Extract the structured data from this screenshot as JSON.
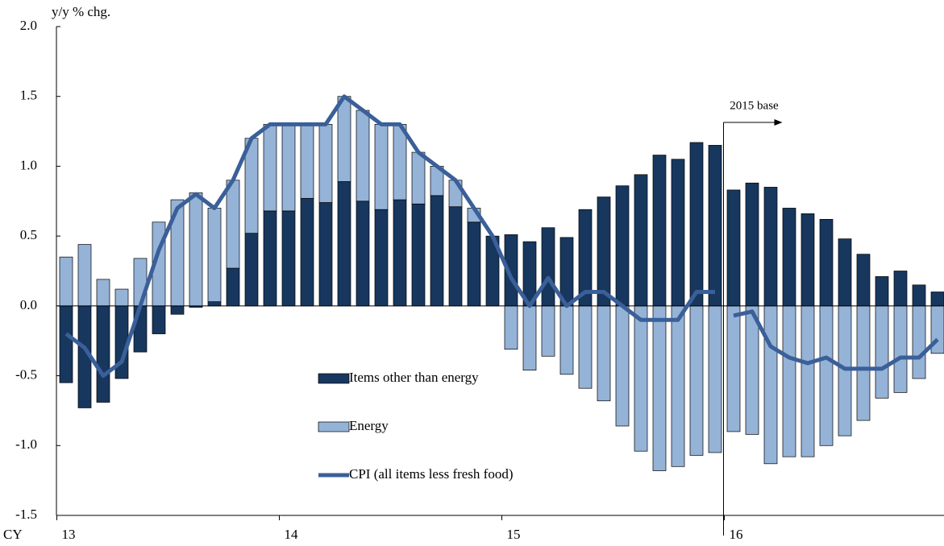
{
  "chart_data": {
    "type": "bar",
    "y_axis_label": "y/y % chg.",
    "x_axis_label": "CY",
    "categories": [
      "13",
      null,
      null,
      null,
      null,
      null,
      null,
      null,
      null,
      null,
      null,
      null,
      "14",
      null,
      null,
      null,
      null,
      null,
      null,
      null,
      null,
      null,
      null,
      null,
      "15",
      null,
      null,
      null,
      null,
      null,
      null,
      null,
      null,
      null,
      null,
      null,
      "16",
      null,
      null,
      null,
      null,
      null,
      null,
      null,
      null,
      null,
      null,
      null
    ],
    "series": [
      {
        "name": "Items other than energy",
        "color": "#17375e",
        "stacked": true,
        "values": [
          -0.55,
          -0.73,
          -0.69,
          -0.52,
          -0.33,
          -0.2,
          -0.06,
          -0.01,
          0.03,
          0.27,
          0.52,
          0.68,
          0.68,
          0.77,
          0.74,
          0.89,
          0.75,
          0.69,
          0.76,
          0.73,
          0.79,
          0.71,
          0.6,
          0.5,
          0.51,
          0.46,
          0.56,
          0.49,
          0.69,
          0.78,
          0.86,
          0.94,
          1.08,
          1.05,
          1.17,
          1.15,
          0.83,
          0.88,
          0.85,
          0.7,
          0.66,
          0.62,
          0.48,
          0.37,
          0.21,
          0.25,
          0.15,
          0.1
        ]
      },
      {
        "name": "Energy",
        "color": "#95b3d7",
        "stacked": true,
        "values": [
          0.35,
          0.44,
          0.19,
          0.12,
          0.34,
          0.6,
          0.76,
          0.81,
          0.67,
          0.63,
          0.68,
          0.62,
          0.62,
          0.53,
          0.56,
          0.61,
          0.65,
          0.61,
          0.54,
          0.37,
          0.21,
          0.19,
          0.1,
          0,
          -0.31,
          -0.46,
          -0.36,
          -0.49,
          -0.59,
          -0.68,
          -0.86,
          -1.04,
          -1.18,
          -1.15,
          -1.07,
          -1.05,
          -0.9,
          -0.92,
          -1.13,
          -1.08,
          -1.08,
          -1.0,
          -0.93,
          -0.82,
          -0.66,
          -0.62,
          -0.52,
          -0.34
        ]
      },
      {
        "name": "CPI (all items less fresh food)",
        "color": "#3a5f99",
        "type": "line",
        "values": [
          -0.2,
          -0.3,
          -0.5,
          -0.4,
          0.0,
          0.4,
          0.7,
          0.8,
          0.7,
          0.9,
          1.2,
          1.3,
          1.3,
          1.3,
          1.3,
          1.5,
          1.4,
          1.3,
          1.3,
          1.1,
          1.0,
          0.9,
          0.7,
          0.5,
          0.2,
          0.0,
          0.2,
          0.0,
          0.1,
          0.1,
          0.0,
          -0.1,
          -0.1,
          -0.1,
          0.1,
          0.1,
          -0.07,
          -0.04,
          -0.29,
          -0.37,
          -0.41,
          -0.37,
          -0.45,
          -0.45,
          -0.45,
          -0.37,
          -0.37,
          -0.24
        ]
      }
    ],
    "annotations": [
      {
        "text": "2015 base",
        "x": 36
      }
    ],
    "ylim": [
      -1.5,
      2.0
    ],
    "yticks": [
      {
        "value": -1.5,
        "label": "-1.5"
      },
      {
        "value": -1,
        "label": "-1.0"
      },
      {
        "value": -0.5,
        "label": "-0.5"
      },
      {
        "value": 0,
        "label": "0.0"
      },
      {
        "value": 0.5,
        "label": "0.5"
      },
      {
        "value": 1,
        "label": "1.0"
      },
      {
        "value": 1.5,
        "label": "1.5"
      },
      {
        "value": 2,
        "label": "2.0"
      }
    ],
    "grid": false,
    "legend": "center"
  }
}
